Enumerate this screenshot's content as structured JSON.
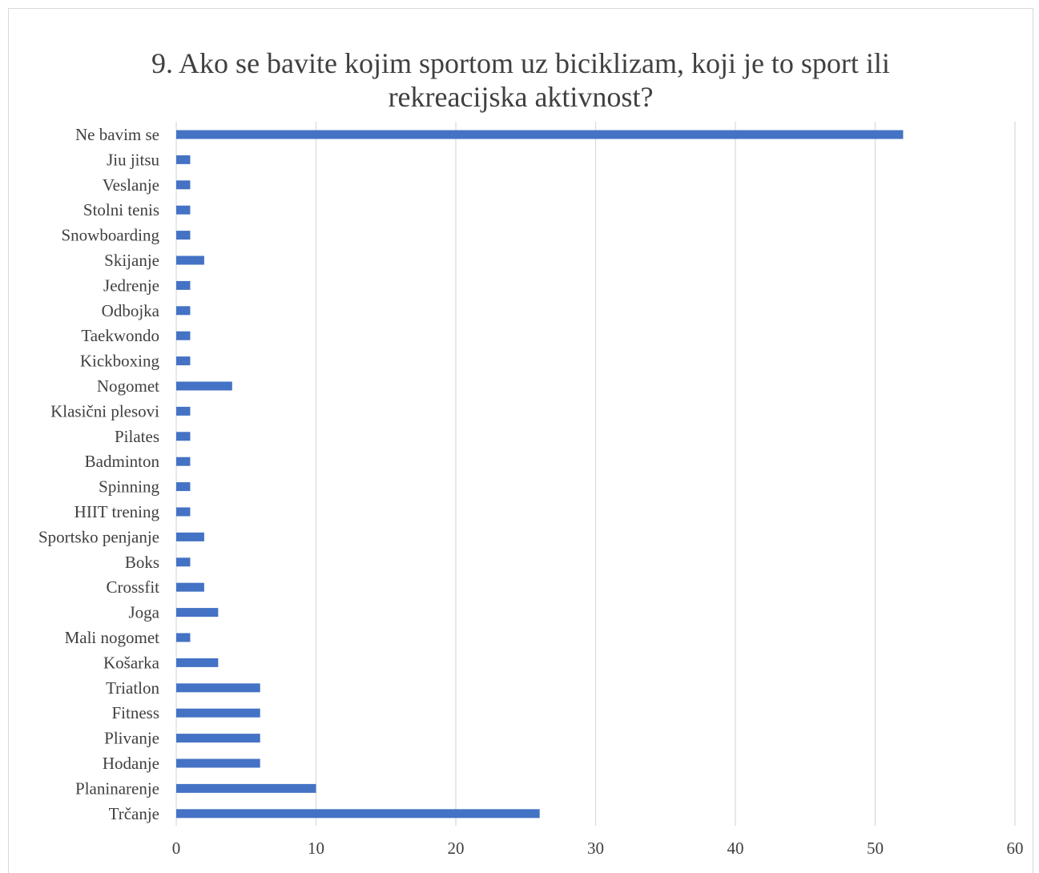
{
  "chart_data": {
    "type": "bar",
    "orientation": "horizontal",
    "title": "9. Ako se bavite kojim sportom uz biciklizam, koji je to sport ili\nrekreacijska aktivnost?",
    "xlabel": "",
    "ylabel": "",
    "xlim": [
      0,
      60
    ],
    "ticks": [
      0,
      10,
      20,
      30,
      40,
      50,
      60
    ],
    "grid": true,
    "legend": "none",
    "bar_color": "#4472c4",
    "grid_color": "#d9d9d9",
    "text_color": "#404040",
    "categories": [
      "Ne bavim se",
      "Jiu jitsu",
      "Veslanje",
      "Stolni tenis",
      "Snowboarding",
      "Skijanje",
      "Jedrenje",
      "Odbojka",
      "Taekwondo",
      "Kickboxing",
      "Nogomet",
      "Klasični plesovi",
      "Pilates",
      "Badminton",
      "Spinning",
      "HIIT trening",
      "Sportsko penjanje",
      "Boks",
      "Crossfit",
      "Joga",
      "Mali nogomet",
      "Košarka",
      "Triatlon",
      "Fitness",
      "Plivanje",
      "Hodanje",
      "Planinarenje",
      "Trčanje"
    ],
    "values": [
      52,
      1,
      1,
      1,
      1,
      2,
      1,
      1,
      1,
      1,
      4,
      1,
      1,
      1,
      1,
      1,
      2,
      1,
      2,
      3,
      1,
      3,
      6,
      6,
      6,
      6,
      10,
      26
    ]
  }
}
